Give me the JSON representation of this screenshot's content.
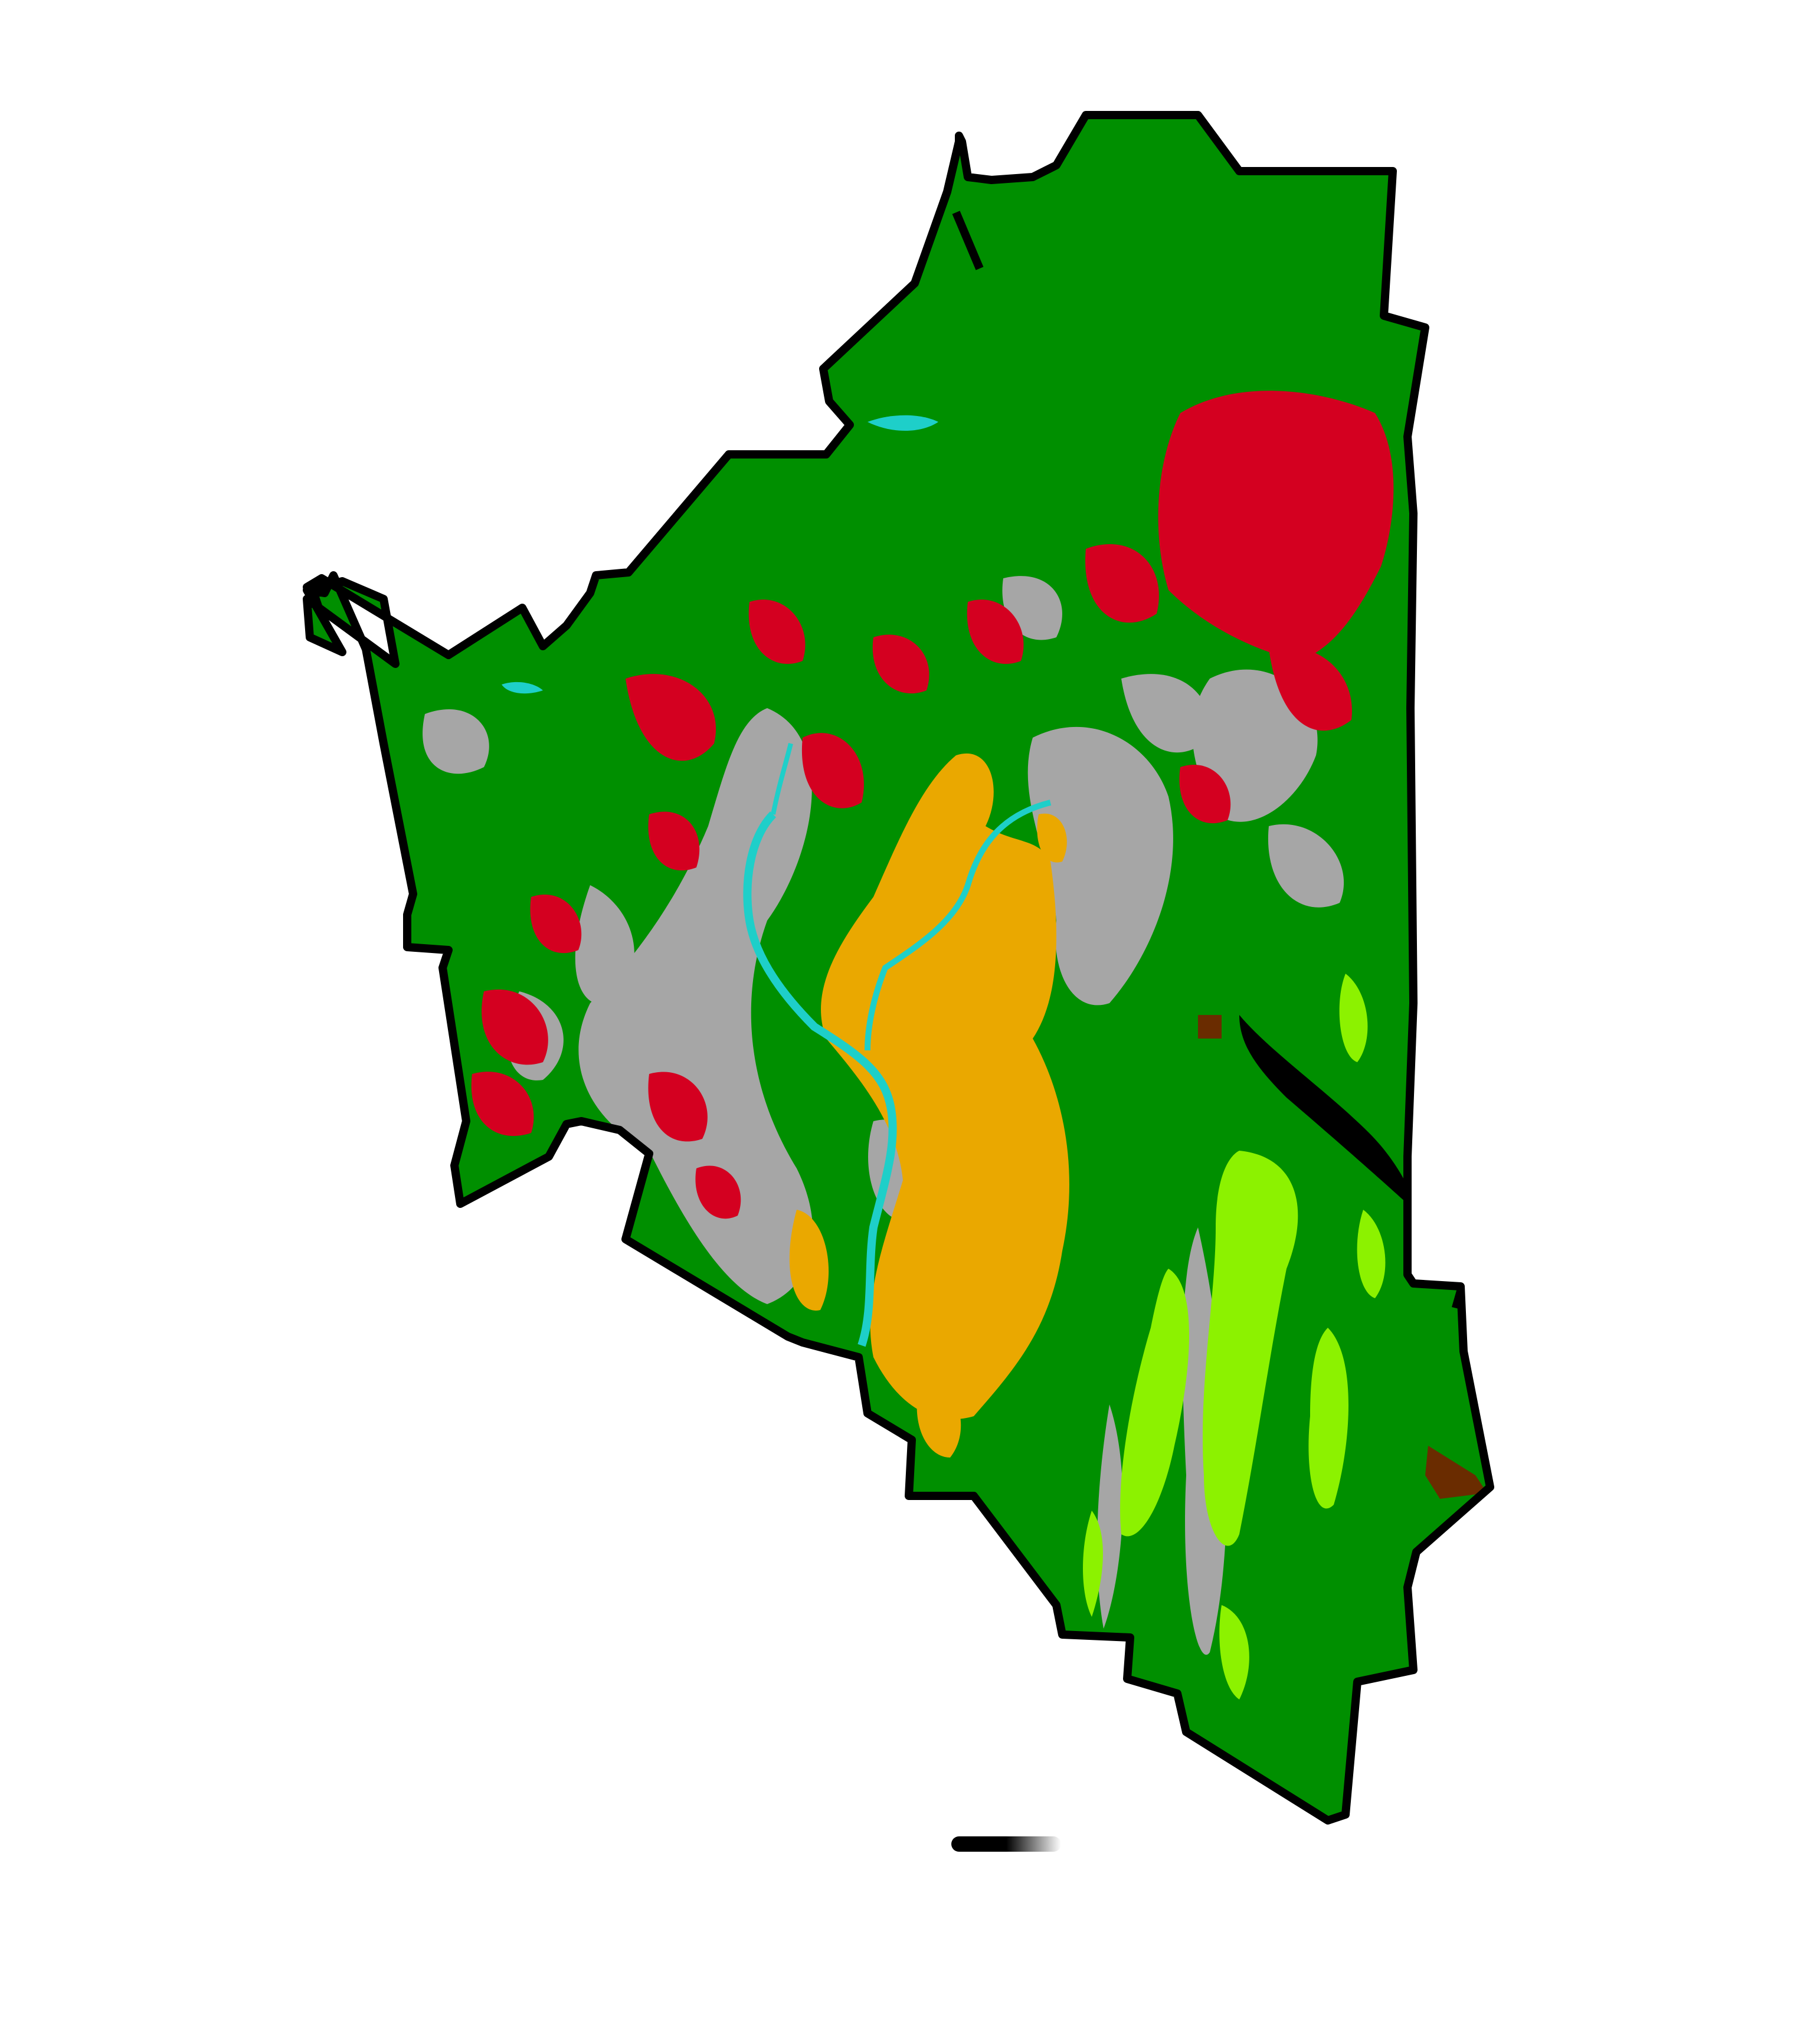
{
  "map": {
    "type": "land-cover",
    "classes": [
      {
        "id": "forest",
        "color": "#008f00"
      },
      {
        "id": "bright-vegetation",
        "color": "#8cf200"
      },
      {
        "id": "bare-urban",
        "color": "#a6a6a6"
      },
      {
        "id": "cropland-orange",
        "color": "#eaa800"
      },
      {
        "id": "cropland-red",
        "color": "#d40020"
      },
      {
        "id": "water",
        "color": "#1ecfc9"
      },
      {
        "id": "wetland-brown",
        "color": "#6a2c00"
      },
      {
        "id": "no-data",
        "color": "#000000"
      }
    ],
    "boundary_color": "#000000"
  },
  "scale_bar": {
    "colors": [
      "#000000",
      "#d9d9d9"
    ]
  }
}
